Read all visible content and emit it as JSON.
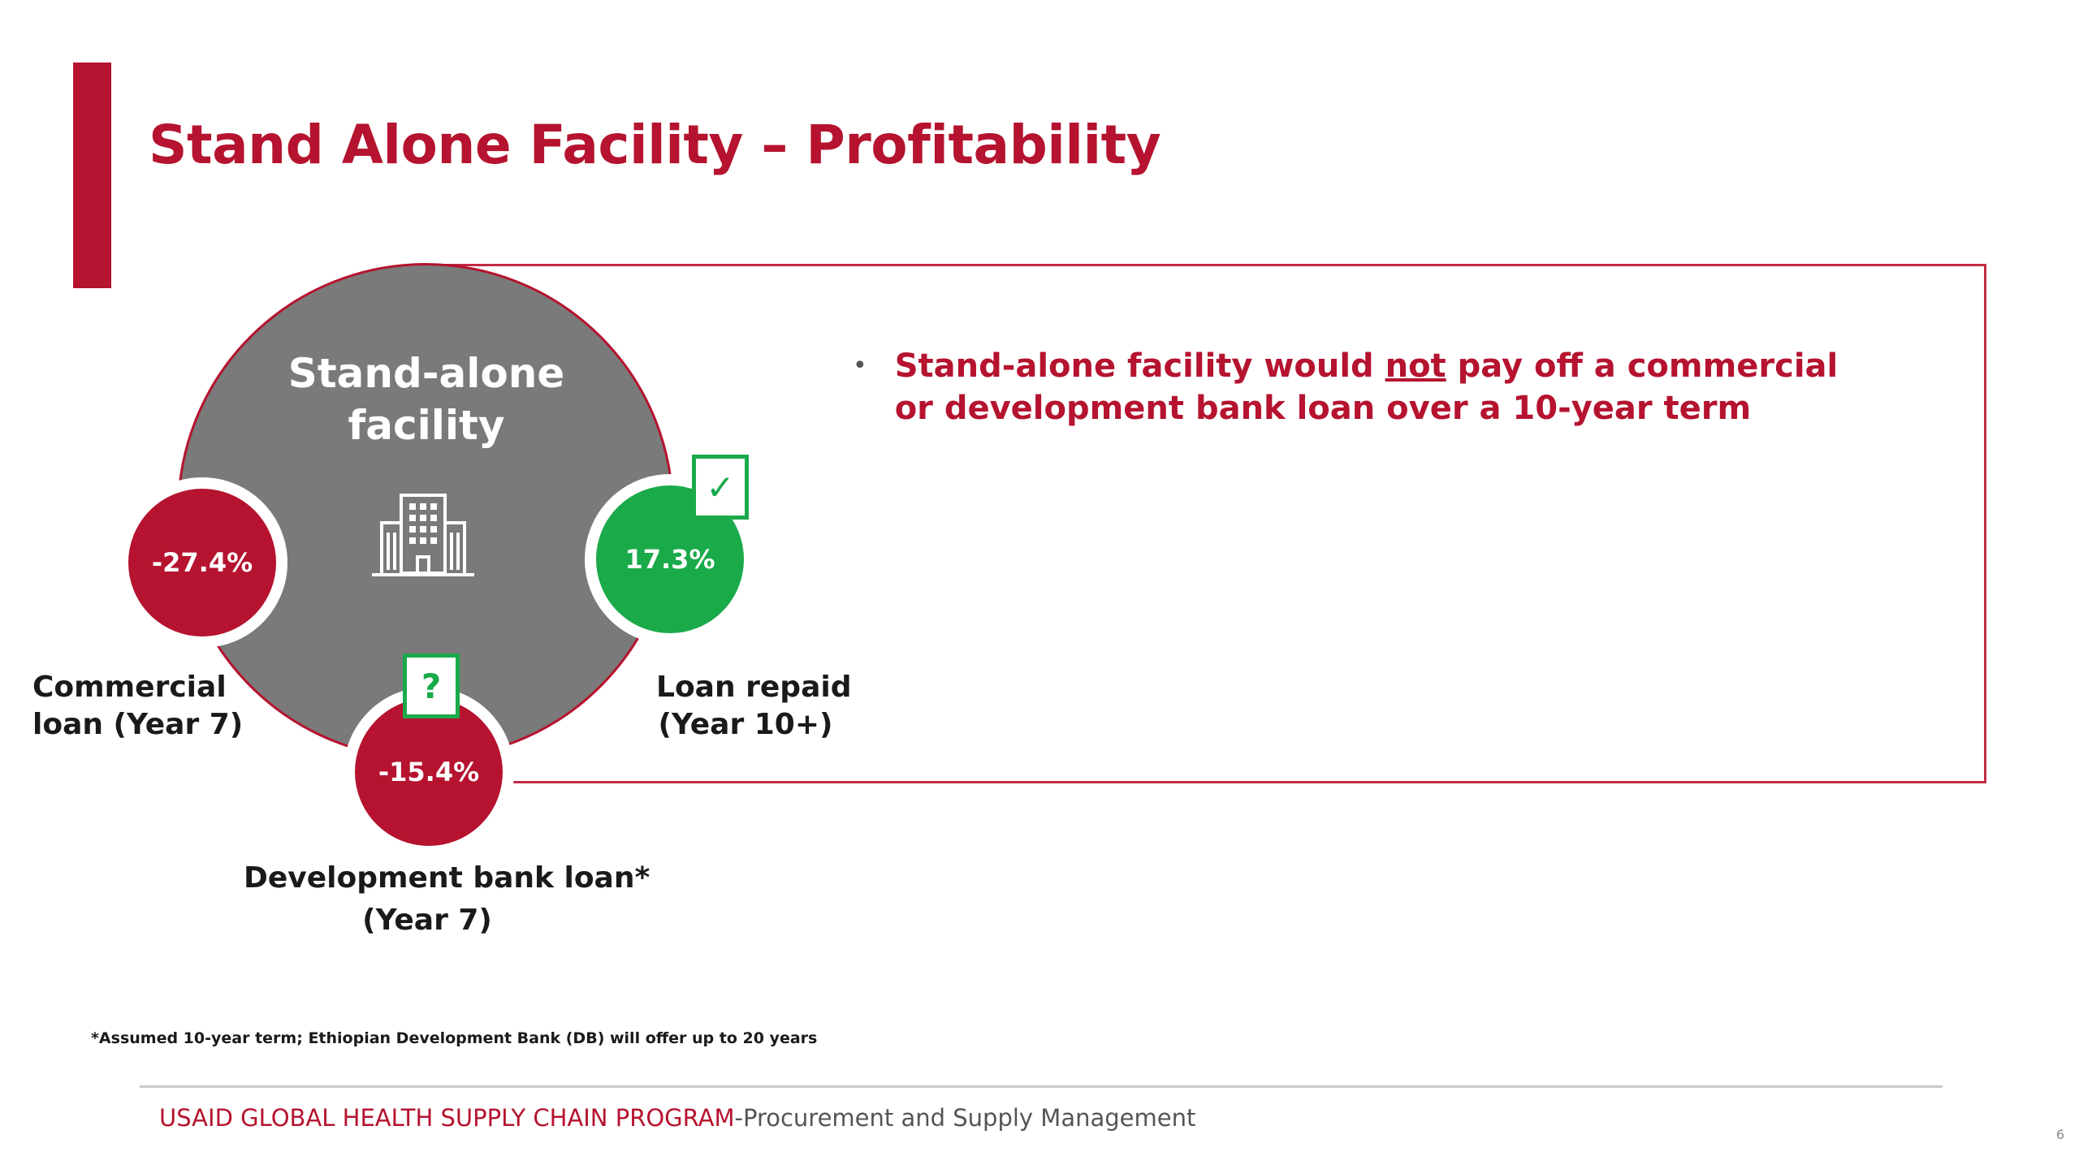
{
  "slide": {
    "title": "Stand Alone Facility – Profitability",
    "center": {
      "label": "Stand-alone facility",
      "icon": "building-icon"
    },
    "nodes": {
      "commercial": {
        "value": "-27.4%",
        "caption_line1": "Commercial",
        "caption_line2": "loan (Year 7)",
        "color": "#b5132f"
      },
      "loan_repaid": {
        "value": "17.3%",
        "caption_line1": "Loan repaid",
        "caption_line2": "(Year 10+)",
        "marker": "✓",
        "color": "#1aaa4a"
      },
      "development": {
        "value": "-15.4%",
        "caption_line1": "Development bank loan*",
        "caption_line2": "(Year 7)",
        "marker": "?",
        "color": "#b5132f"
      }
    },
    "bullet": {
      "text_before": "Stand-alone facility would ",
      "text_emphasis": "not",
      "text_after": " pay off a commercial or development bank loan over a 10-year term"
    },
    "footnote": "*Assumed 10-year term; Ethiopian Development Bank (DB) will offer up to 20 years",
    "footer": {
      "org": "USAID GLOBAL HEALTH SUPPLY CHAIN PROGRAM",
      "subtitle": "-Procurement and Supply Management"
    },
    "page_number": "6",
    "colors": {
      "accent": "#b5132f",
      "success": "#1aaa4a",
      "neutral": "#7a7a7a"
    }
  }
}
